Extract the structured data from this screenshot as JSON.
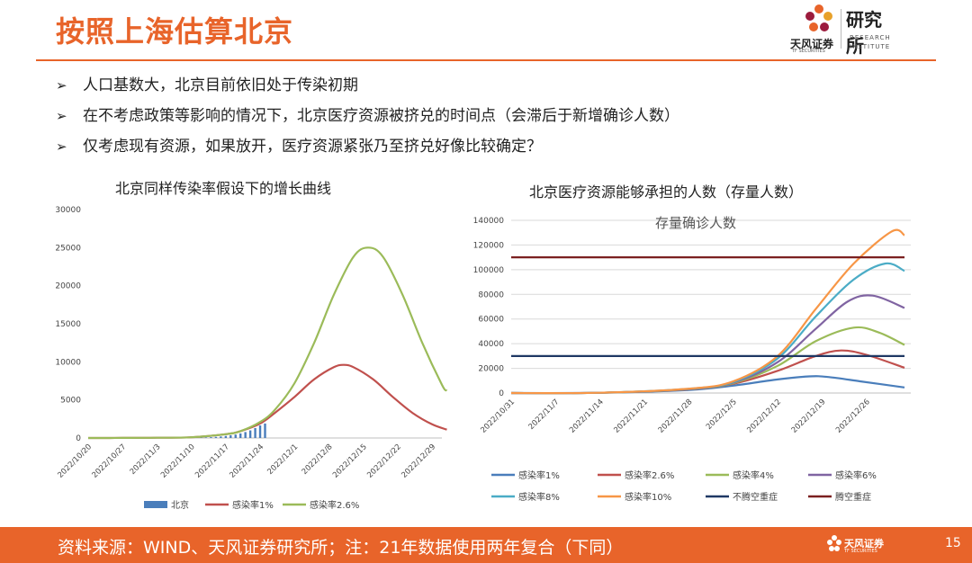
{
  "header": {
    "title": "按照上海估算北京",
    "logo_name": "天风证券",
    "logo_sub_en": "TF SECURITIES",
    "logo_right_cn": "研究所",
    "logo_right_en1": "RESEARCH",
    "logo_right_en2": "INSTITUTE"
  },
  "bullets": [
    {
      "arrow": "➢",
      "text": "人口基数大，北京目前依旧处于传染初期"
    },
    {
      "arrow": "➢",
      "text": "在不考虑政策等影响的情况下，北京医疗资源被挤兑的时间点（会滞后于新增确诊人数）"
    },
    {
      "arrow": "➢",
      "text": "仅考虑现有资源，如果放开，医疗资源紧张乃至挤兑好像比较确定？"
    }
  ],
  "chart_data": [
    {
      "type": "line",
      "title": "北京同样传染率假设下的增长曲线",
      "ylim": [
        0,
        30000
      ],
      "yticks": [
        0,
        5000,
        10000,
        15000,
        20000,
        25000,
        30000
      ],
      "x_start": "2022-10-20",
      "x_end": "2022-12-31",
      "xticks": [
        "2022/10/20",
        "2022/10/27",
        "2022/11/3",
        "2022/11/10",
        "2022/11/17",
        "2022/11/24",
        "2022/12/1",
        "2022/12/8",
        "2022/12/15",
        "2022/12/22",
        "2022/12/29"
      ],
      "bars": {
        "name": "北京",
        "color": "#4a7ebb",
        "points": [
          [
            "2022-11-11",
            40
          ],
          [
            "2022-11-12",
            60
          ],
          [
            "2022-11-13",
            80
          ],
          [
            "2022-11-14",
            110
          ],
          [
            "2022-11-15",
            150
          ],
          [
            "2022-11-16",
            200
          ],
          [
            "2022-11-17",
            270
          ],
          [
            "2022-11-18",
            350
          ],
          [
            "2022-11-19",
            450
          ],
          [
            "2022-11-20",
            600
          ],
          [
            "2022-11-21",
            780
          ],
          [
            "2022-11-22",
            1000
          ],
          [
            "2022-11-23",
            1300
          ],
          [
            "2022-11-24",
            1650
          ],
          [
            "2022-11-25",
            1900
          ]
        ]
      },
      "series": [
        {
          "name": "感染率1%",
          "color": "#c0504d",
          "points": [
            [
              "2022-10-20",
              0
            ],
            [
              "2022-10-27",
              10
            ],
            [
              "2022-11-3",
              30
            ],
            [
              "2022-11-10",
              100
            ],
            [
              "2022-11-17",
              500
            ],
            [
              "2022-11-20",
              900
            ],
            [
              "2022-11-24",
              1900
            ],
            [
              "2022-11-27",
              3300
            ],
            [
              "2022-12-1",
              5400
            ],
            [
              "2022-12-5",
              7700
            ],
            [
              "2022-12-9",
              9300
            ],
            [
              "2022-12-11",
              9600
            ],
            [
              "2022-12-13",
              9300
            ],
            [
              "2022-12-17",
              7700
            ],
            [
              "2022-12-21",
              5400
            ],
            [
              "2022-12-25",
              3300
            ],
            [
              "2022-12-29",
              1800
            ],
            [
              "2023-1-1",
              1100
            ]
          ]
        },
        {
          "name": "感染率2.6%",
          "color": "#9bbb59",
          "points": [
            [
              "2022-10-20",
              0
            ],
            [
              "2022-10-27",
              10
            ],
            [
              "2022-11-3",
              30
            ],
            [
              "2022-11-10",
              100
            ],
            [
              "2022-11-17",
              500
            ],
            [
              "2022-11-20",
              900
            ],
            [
              "2022-11-24",
              2100
            ],
            [
              "2022-11-27",
              3700
            ],
            [
              "2022-12-1",
              7200
            ],
            [
              "2022-12-5",
              12500
            ],
            [
              "2022-12-9",
              18800
            ],
            [
              "2022-12-13",
              23800
            ],
            [
              "2022-12-16",
              25000
            ],
            [
              "2022-12-19",
              23800
            ],
            [
              "2022-12-23",
              18800
            ],
            [
              "2022-12-27",
              12500
            ],
            [
              "2022-12-31",
              7000
            ],
            [
              "2023-1-1",
              6200
            ]
          ]
        }
      ],
      "legend": [
        "北京",
        "感染率1%",
        "感染率2.6%"
      ]
    },
    {
      "type": "line",
      "title": "北京医疗资源能够承担的人数（存量人数）",
      "subtitle": "存量确诊人数",
      "ylim": [
        0,
        140000
      ],
      "yticks": [
        0,
        20000,
        40000,
        60000,
        80000,
        100000,
        120000,
        140000
      ],
      "x_start": "2022-10-31",
      "x_end": "2023-01-02",
      "xticks": [
        "2022/10/31",
        "2022/11/7",
        "2022/11/14",
        "2022/11/21",
        "2022/11/28",
        "2022/12/5",
        "2022/12/12",
        "2022/12/19",
        "2022/12/26"
      ],
      "series": [
        {
          "name": "感染率1%",
          "color": "#4a7ebb",
          "points": [
            [
              "2022-10-31",
              0
            ],
            [
              "2022-11-14",
              200
            ],
            [
              "2022-11-28",
              2500
            ],
            [
              "2022-12-5",
              6000
            ],
            [
              "2022-12-12",
              11000
            ],
            [
              "2022-12-17",
              13500
            ],
            [
              "2022-12-20",
              13000
            ],
            [
              "2022-12-25",
              9500
            ],
            [
              "2023-1-1",
              4500
            ]
          ]
        },
        {
          "name": "感染率2.6%",
          "color": "#c0504d",
          "points": [
            [
              "2022-10-31",
              0
            ],
            [
              "2022-11-14",
              200
            ],
            [
              "2022-11-28",
              3000
            ],
            [
              "2022-12-5",
              7500
            ],
            [
              "2022-12-12",
              18000
            ],
            [
              "2022-12-18",
              30000
            ],
            [
              "2022-12-22",
              34500
            ],
            [
              "2022-12-26",
              31000
            ],
            [
              "2023-1-1",
              20500
            ]
          ]
        },
        {
          "name": "感染率4%",
          "color": "#9bbb59",
          "points": [
            [
              "2022-10-31",
              0
            ],
            [
              "2022-11-14",
              200
            ],
            [
              "2022-11-28",
              3200
            ],
            [
              "2022-12-5",
              8000
            ],
            [
              "2022-12-12",
              22000
            ],
            [
              "2022-12-18",
              42000
            ],
            [
              "2022-12-24",
              53000
            ],
            [
              "2022-12-28",
              49000
            ],
            [
              "2023-1-1",
              39000
            ]
          ]
        },
        {
          "name": "感染率6%",
          "color": "#8064a2",
          "points": [
            [
              "2022-10-31",
              0
            ],
            [
              "2022-11-14",
              200
            ],
            [
              "2022-11-28",
              3300
            ],
            [
              "2022-12-5",
              8500
            ],
            [
              "2022-12-12",
              25000
            ],
            [
              "2022-12-18",
              52000
            ],
            [
              "2022-12-23",
              74000
            ],
            [
              "2022-12-27",
              79000
            ],
            [
              "2023-1-1",
              69000
            ]
          ]
        },
        {
          "name": "感染率8%",
          "color": "#4bacc6",
          "points": [
            [
              "2022-10-31",
              0
            ],
            [
              "2022-11-14",
              200
            ],
            [
              "2022-11-28",
              3400
            ],
            [
              "2022-12-5",
              9000
            ],
            [
              "2022-12-12",
              28000
            ],
            [
              "2022-12-18",
              62000
            ],
            [
              "2022-12-24",
              92000
            ],
            [
              "2022-12-29",
              105000
            ],
            [
              "2023-1-1",
              99000
            ]
          ]
        },
        {
          "name": "感染率10%",
          "color": "#f79646",
          "points": [
            [
              "2022-10-31",
              0
            ],
            [
              "2022-11-14",
              200
            ],
            [
              "2022-11-28",
              3500
            ],
            [
              "2022-12-5",
              9500
            ],
            [
              "2022-12-12",
              30000
            ],
            [
              "2022-12-18",
              68000
            ],
            [
              "2022-12-24",
              105000
            ],
            [
              "2022-12-30",
              131000
            ],
            [
              "2023-1-1",
              128000
            ]
          ]
        },
        {
          "name": "不腾空重症",
          "color": "#1f3864",
          "points": [
            [
              "2022-10-31",
              30000
            ],
            [
              "2023-1-1",
              30000
            ]
          ]
        },
        {
          "name": "腾空重症",
          "color": "#7b2020",
          "points": [
            [
              "2022-10-31",
              110000
            ],
            [
              "2023-1-1",
              110000
            ]
          ]
        }
      ],
      "legend": [
        "感染率1%",
        "感染率2.6%",
        "感染率4%",
        "感染率6%",
        "感染率8%",
        "感染率10%",
        "不腾空重症",
        "腾空重症"
      ]
    }
  ],
  "footer": {
    "source": "资料来源：WIND、天风证券研究所；注：21年数据使用两年复合（下同）",
    "logo_name": "天风证券",
    "logo_sub": "TF SECURITIES",
    "page": "15"
  },
  "colors": {
    "brand": "#e8642a"
  }
}
